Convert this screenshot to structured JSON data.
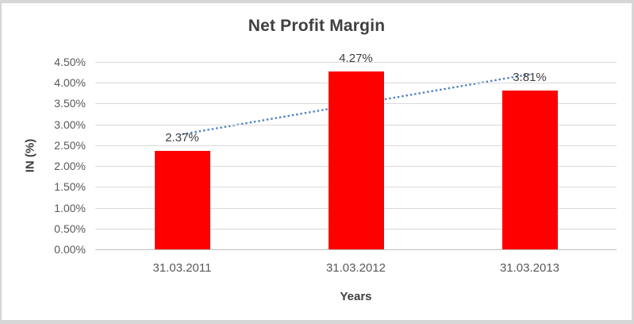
{
  "chart_data": {
    "type": "bar",
    "title": "Net Profit Margin",
    "categories": [
      "31.03.2011",
      "31.03.2012",
      "31.03.2013"
    ],
    "values": [
      2.37,
      4.27,
      3.81
    ],
    "data_labels": [
      "2.37%",
      "4.27%",
      "3.81%"
    ],
    "xlabel": "Years",
    "ylabel": "IN (%)",
    "ylim": [
      0,
      4.5
    ],
    "ytick_step": 0.5,
    "yticks": [
      "4.50%",
      "4.00%",
      "3.50%",
      "3.00%",
      "2.50%",
      "2.00%",
      "1.50%",
      "1.00%",
      "0.50%",
      "0.00%"
    ],
    "grid": true,
    "legend": "none",
    "trendline": {
      "type": "linear",
      "style": "dotted"
    },
    "colors": {
      "bar": "#FF0000",
      "trendline": "#4F81BD",
      "gridline": "#D9D9D9",
      "axis_line": "#BFBFBF",
      "title_text": "#404040",
      "tick_text": "#595959",
      "frame_border": "#D6D6D6"
    }
  }
}
